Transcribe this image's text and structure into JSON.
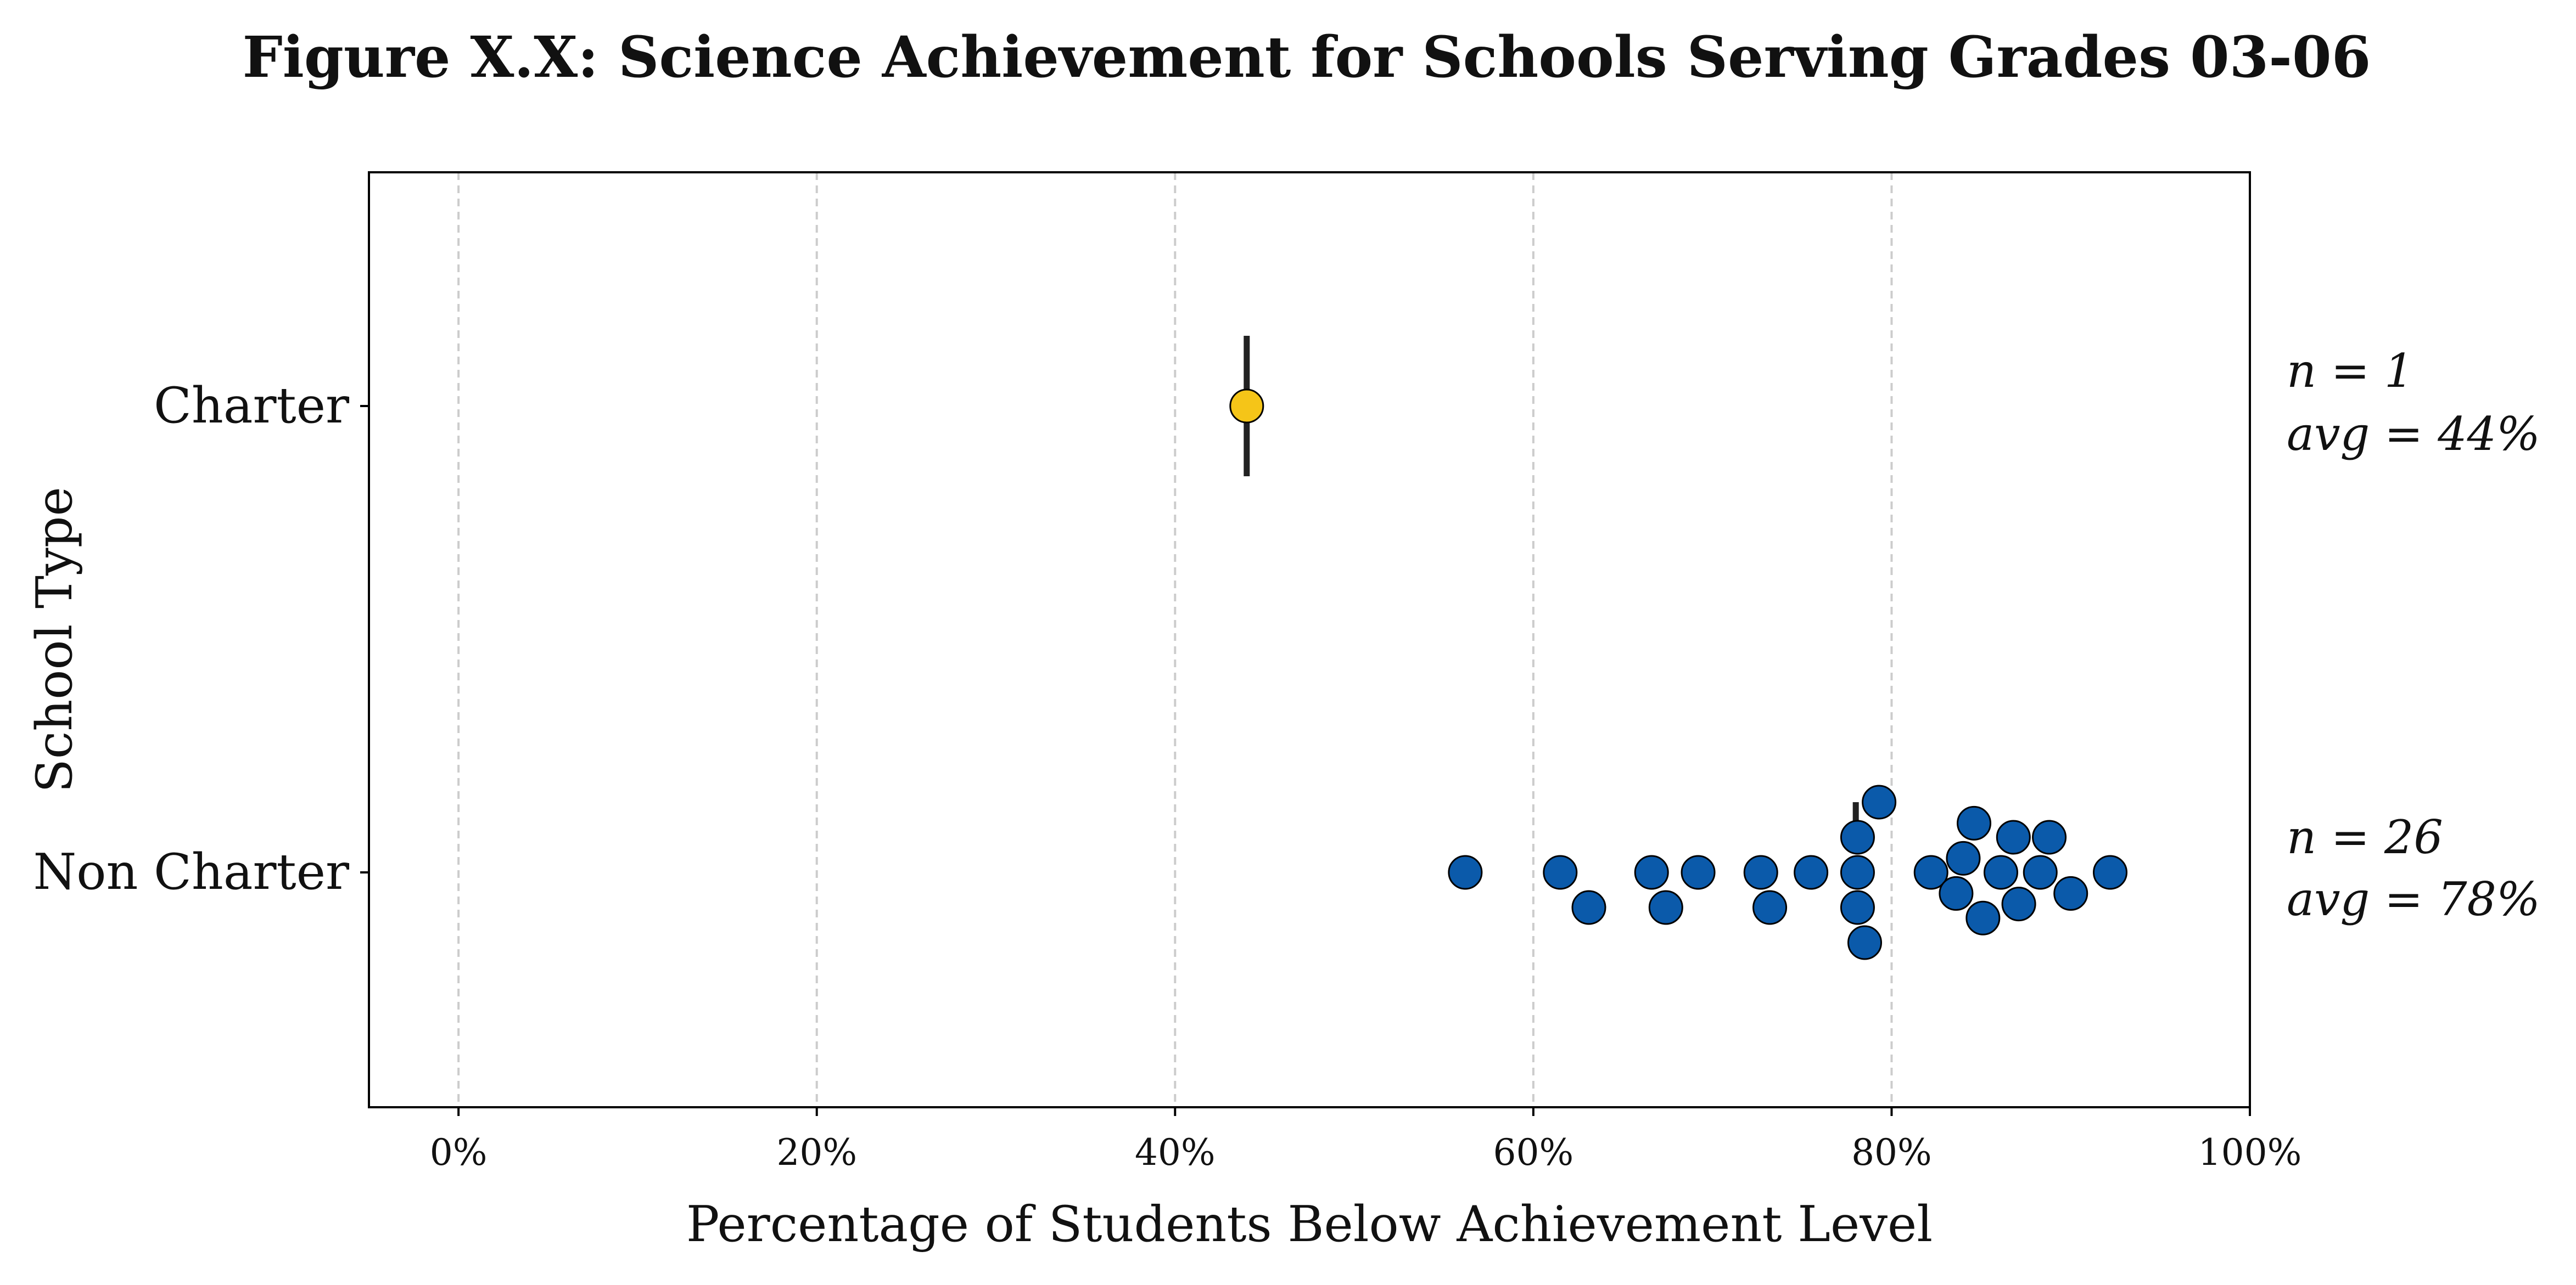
{
  "chart_data": {
    "type": "scatter",
    "title": "Figure X.X: Science Achievement for Schools Serving Grades 03-06",
    "xlabel": "Percentage of Students Below Achievement Level",
    "ylabel": "School Type",
    "xlim": [
      -5,
      100
    ],
    "x_ticks": [
      0,
      20,
      40,
      60,
      80,
      100
    ],
    "x_tick_labels": [
      "0%",
      "20%",
      "40%",
      "60%",
      "80%",
      "100%"
    ],
    "grid": "vertical dashed",
    "categories": [
      "Charter",
      "Non Charter"
    ],
    "series": [
      {
        "category": "Charter",
        "color": "#F5C518",
        "average": 44,
        "n_label": "n = 1",
        "avg_label": "avg = 44%",
        "points": [
          {
            "x": 44,
            "offset": 0
          }
        ]
      },
      {
        "category": "Non Charter",
        "color": "#0B5AAA",
        "average": 78,
        "n_label": "n = 26",
        "avg_label": "avg = 78%",
        "points": [
          {
            "x": 56.2,
            "offset": 0
          },
          {
            "x": 61.5,
            "offset": 0
          },
          {
            "x": 63.1,
            "offset": -1
          },
          {
            "x": 66.6,
            "offset": 0
          },
          {
            "x": 67.4,
            "offset": -1
          },
          {
            "x": 69.2,
            "offset": 0
          },
          {
            "x": 72.7,
            "offset": 0
          },
          {
            "x": 73.2,
            "offset": -1
          },
          {
            "x": 75.5,
            "offset": 0
          },
          {
            "x": 78.1,
            "offset": 1
          },
          {
            "x": 78.1,
            "offset": 0
          },
          {
            "x": 78.1,
            "offset": -1
          },
          {
            "x": 78.5,
            "offset": -2
          },
          {
            "x": 79.3,
            "offset": 2
          },
          {
            "x": 82.2,
            "offset": 0
          },
          {
            "x": 83.6,
            "offset": -0.6
          },
          {
            "x": 84.0,
            "offset": 0.4
          },
          {
            "x": 84.6,
            "offset": 1.4
          },
          {
            "x": 85.1,
            "offset": -1.3
          },
          {
            "x": 86.1,
            "offset": 0
          },
          {
            "x": 86.8,
            "offset": 1
          },
          {
            "x": 87.1,
            "offset": -0.9
          },
          {
            "x": 88.3,
            "offset": 0
          },
          {
            "x": 88.8,
            "offset": 1
          },
          {
            "x": 90.0,
            "offset": -0.6
          },
          {
            "x": 92.2,
            "offset": 0
          }
        ]
      }
    ]
  }
}
